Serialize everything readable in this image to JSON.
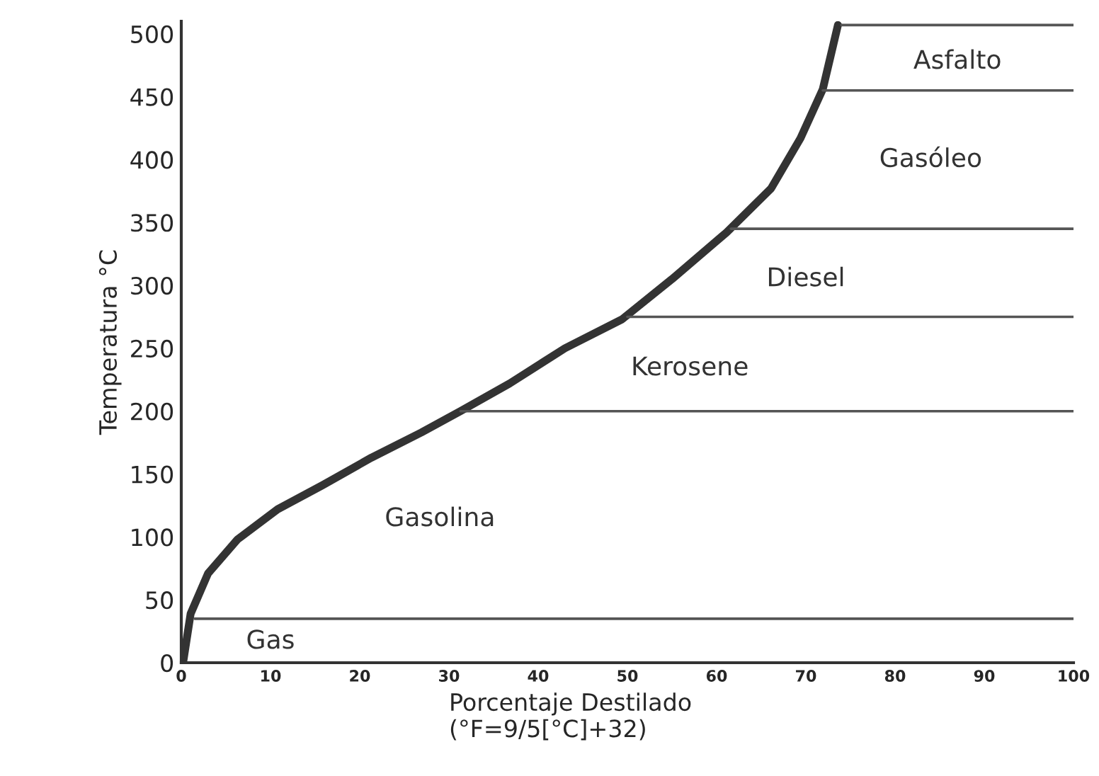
{
  "chart_data": {
    "type": "line",
    "xlabel": "Porcentaje Destilado\n(°F=9/5[°C]+32)",
    "ylabel": "Temperatura °C",
    "xlim": [
      0,
      100
    ],
    "ylim": [
      0,
      510
    ],
    "xticks": [
      0,
      10,
      20,
      30,
      40,
      50,
      60,
      70,
      80,
      90,
      100
    ],
    "yticks": [
      0,
      50,
      100,
      150,
      200,
      250,
      300,
      350,
      400,
      450,
      500
    ],
    "grid": false,
    "legend": false,
    "marker": "none",
    "line_style": "solid",
    "series": [
      {
        "color": "#333333",
        "x": [
          0.2,
          1.05,
          3.0,
          6.3,
          10.8,
          15.8,
          21.3,
          26.9,
          31.3,
          36.8,
          43,
          49.4,
          55,
          61.1,
          66.1,
          69.4,
          71.9,
          73.6
        ],
        "values": [
          0,
          39,
          71,
          98,
          122,
          141,
          163,
          183,
          200,
          222,
          250,
          273,
          305,
          342,
          377,
          417,
          456,
          507
        ]
      },
      {
        "color": "#555555",
        "x": [
          1.5,
          100
        ],
        "values": [
          35,
          35
        ]
      },
      {
        "color": "#555555",
        "x": [
          31.3,
          100
        ],
        "values": [
          200,
          200
        ]
      },
      {
        "color": "#555555",
        "x": [
          50,
          100
        ],
        "values": [
          275,
          275
        ]
      },
      {
        "color": "#555555",
        "x": [
          61.6,
          100
        ],
        "values": [
          345,
          345
        ]
      },
      {
        "color": "#555555",
        "x": [
          71.9,
          100
        ],
        "values": [
          455,
          455
        ]
      },
      {
        "color": "#555555",
        "x": [
          74,
          100
        ],
        "values": [
          507,
          507
        ]
      }
    ],
    "annotations": [
      "Gas",
      "Gasolina",
      "Kerosene",
      "Diesel",
      "Gasóleo",
      "Asfalto"
    ]
  }
}
